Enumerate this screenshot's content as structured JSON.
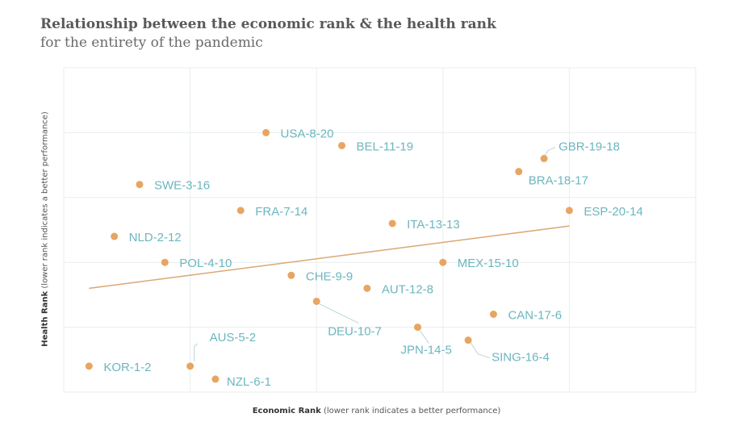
{
  "chart_data": {
    "type": "scatter",
    "title": "Relationship between the economic rank & the health rank",
    "subtitle": "for the entirety of the pandemic",
    "xlabel_bold": "Economic Rank",
    "xlabel_rest": " (lower rank indicates a better performance)",
    "ylabel_bold": "Health Rank",
    "ylabel_rest": " (lower rank indicates a better performance)",
    "xlim": [
      0,
      25
    ],
    "ylim": [
      0,
      25
    ],
    "grid": true,
    "point_color": "#e8a561",
    "label_color": "#6cb6bf",
    "trendline_color": "#dba874",
    "trendline": {
      "x": [
        1,
        20
      ],
      "y": [
        8,
        12.8
      ]
    },
    "points": [
      {
        "label": "KOR-1-2",
        "x": 1,
        "y": 2
      },
      {
        "label": "NLD-2-12",
        "x": 2,
        "y": 12
      },
      {
        "label": "SWE-3-16",
        "x": 3,
        "y": 16
      },
      {
        "label": "POL-4-10",
        "x": 4,
        "y": 10
      },
      {
        "label": "AUS-5-2",
        "x": 5,
        "y": 2
      },
      {
        "label": "NZL-6-1",
        "x": 6,
        "y": 1
      },
      {
        "label": "FRA-7-14",
        "x": 7,
        "y": 14
      },
      {
        "label": "USA-8-20",
        "x": 8,
        "y": 20
      },
      {
        "label": "CHE-9-9",
        "x": 9,
        "y": 9
      },
      {
        "label": "DEU-10-7",
        "x": 10,
        "y": 7
      },
      {
        "label": "BEL-11-19",
        "x": 11,
        "y": 19
      },
      {
        "label": "AUT-12-8",
        "x": 12,
        "y": 8
      },
      {
        "label": "ITA-13-13",
        "x": 13,
        "y": 13
      },
      {
        "label": "JPN-14-5",
        "x": 14,
        "y": 5
      },
      {
        "label": "MEX-15-10",
        "x": 15,
        "y": 10
      },
      {
        "label": "SING-16-4",
        "x": 16,
        "y": 4
      },
      {
        "label": "CAN-17-6",
        "x": 17,
        "y": 6
      },
      {
        "label": "BRA-18-17",
        "x": 18,
        "y": 17
      },
      {
        "label": "GBR-19-18",
        "x": 19,
        "y": 18
      },
      {
        "label": "ESP-20-14",
        "x": 20,
        "y": 14
      }
    ]
  }
}
